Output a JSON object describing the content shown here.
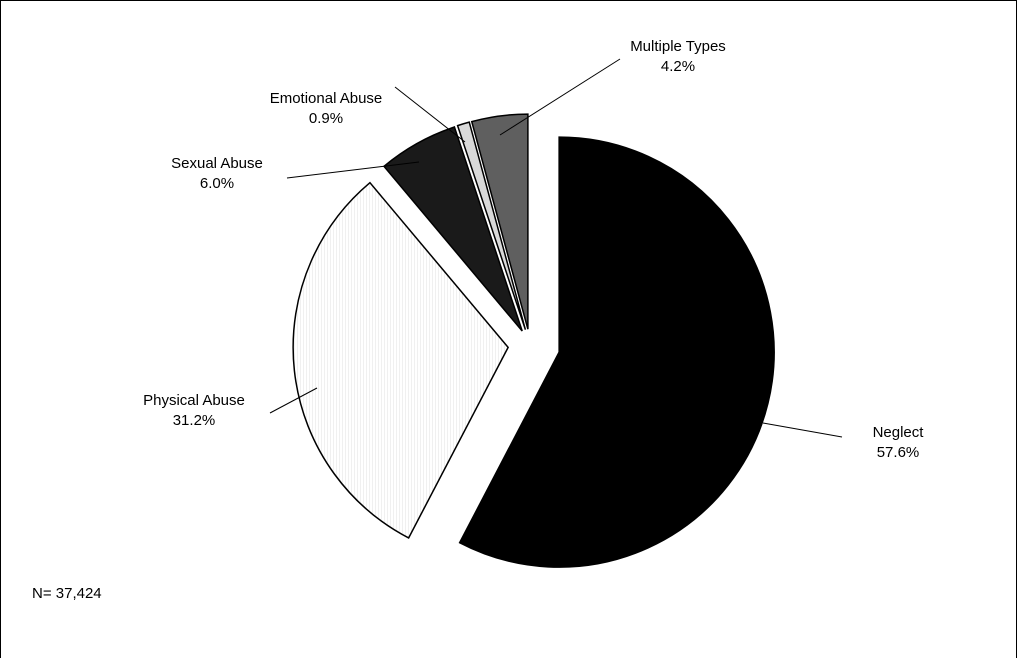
{
  "chart_data": {
    "type": "pie",
    "title": "",
    "slices": [
      {
        "name": "Neglect",
        "value": 57.6,
        "label": "57.6%",
        "color": "#000000"
      },
      {
        "name": "Physical Abuse",
        "value": 31.2,
        "label": "31.2%",
        "color": "#ffffff"
      },
      {
        "name": "Sexual Abuse",
        "value": 6.0,
        "label": "6.0%",
        "color": "#1a1a1a"
      },
      {
        "name": "Emotional Abuse",
        "value": 0.9,
        "label": "0.9%",
        "color": "#d9d9d9"
      },
      {
        "name": "Multiple Types",
        "value": 4.2,
        "label": "4.2%",
        "color": "#5f5f5f"
      }
    ],
    "exploded": true,
    "start_angle_deg": 0,
    "direction": "clockwise"
  },
  "footnote": "N= 37,424"
}
